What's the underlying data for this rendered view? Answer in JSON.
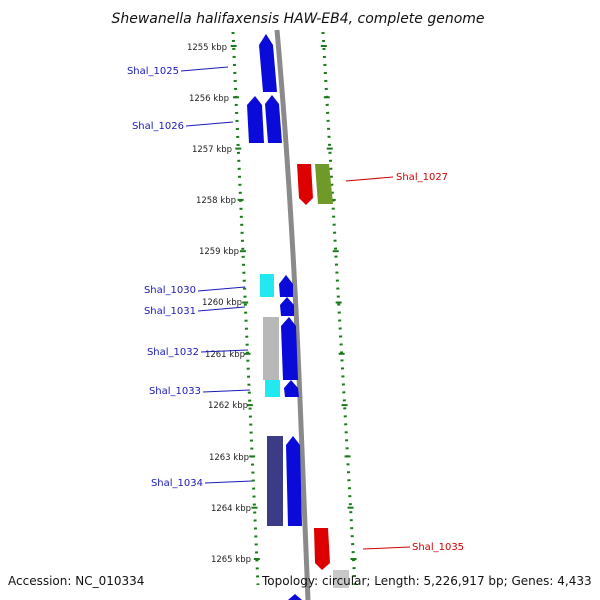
{
  "title": "Shewanella halifaxensis HAW-EB4, complete genome",
  "footer": {
    "accession": "Accession: NC_010334",
    "topology": "Topology: circular; Length: 5,226,917 bp; Genes: 4,433"
  },
  "kbp_labels": [
    "1255 kbp",
    "1256 kbp",
    "1257 kbp",
    "1258 kbp",
    "1259 kbp",
    "1260 kbp",
    "1261 kbp",
    "1262 kbp",
    "1263 kbp",
    "1264 kbp",
    "1265 kbp"
  ],
  "genes": [
    {
      "name": "Shal_1025",
      "strand": "+",
      "color": "#0b0bd9"
    },
    {
      "name": "Shal_1026",
      "strand": "+",
      "color": "#0b0bd9"
    },
    {
      "name": "Shal_1027",
      "strand": "-",
      "color": "#dd0000"
    },
    {
      "name": "Shal_1030",
      "strand": "+",
      "color": "#22e8f0"
    },
    {
      "name": "Shal_1031",
      "strand": "+",
      "color": "#0b0bd9"
    },
    {
      "name": "Shal_1032",
      "strand": "+",
      "color": "#b8b8b8"
    },
    {
      "name": "Shal_1033",
      "strand": "+",
      "color": "#22e8f0"
    },
    {
      "name": "Shal_1034",
      "strand": "+",
      "color": "#3b3b86"
    },
    {
      "name": "Shal_1035",
      "strand": "-",
      "color": "#dd0000"
    }
  ],
  "colors": {
    "backbone": "#8a8a8a",
    "dotted_track": "#1a7a1a",
    "label_blue": "#1a1ab8",
    "label_red": "#cc0000",
    "olive_gene": "#6f9a2a"
  }
}
